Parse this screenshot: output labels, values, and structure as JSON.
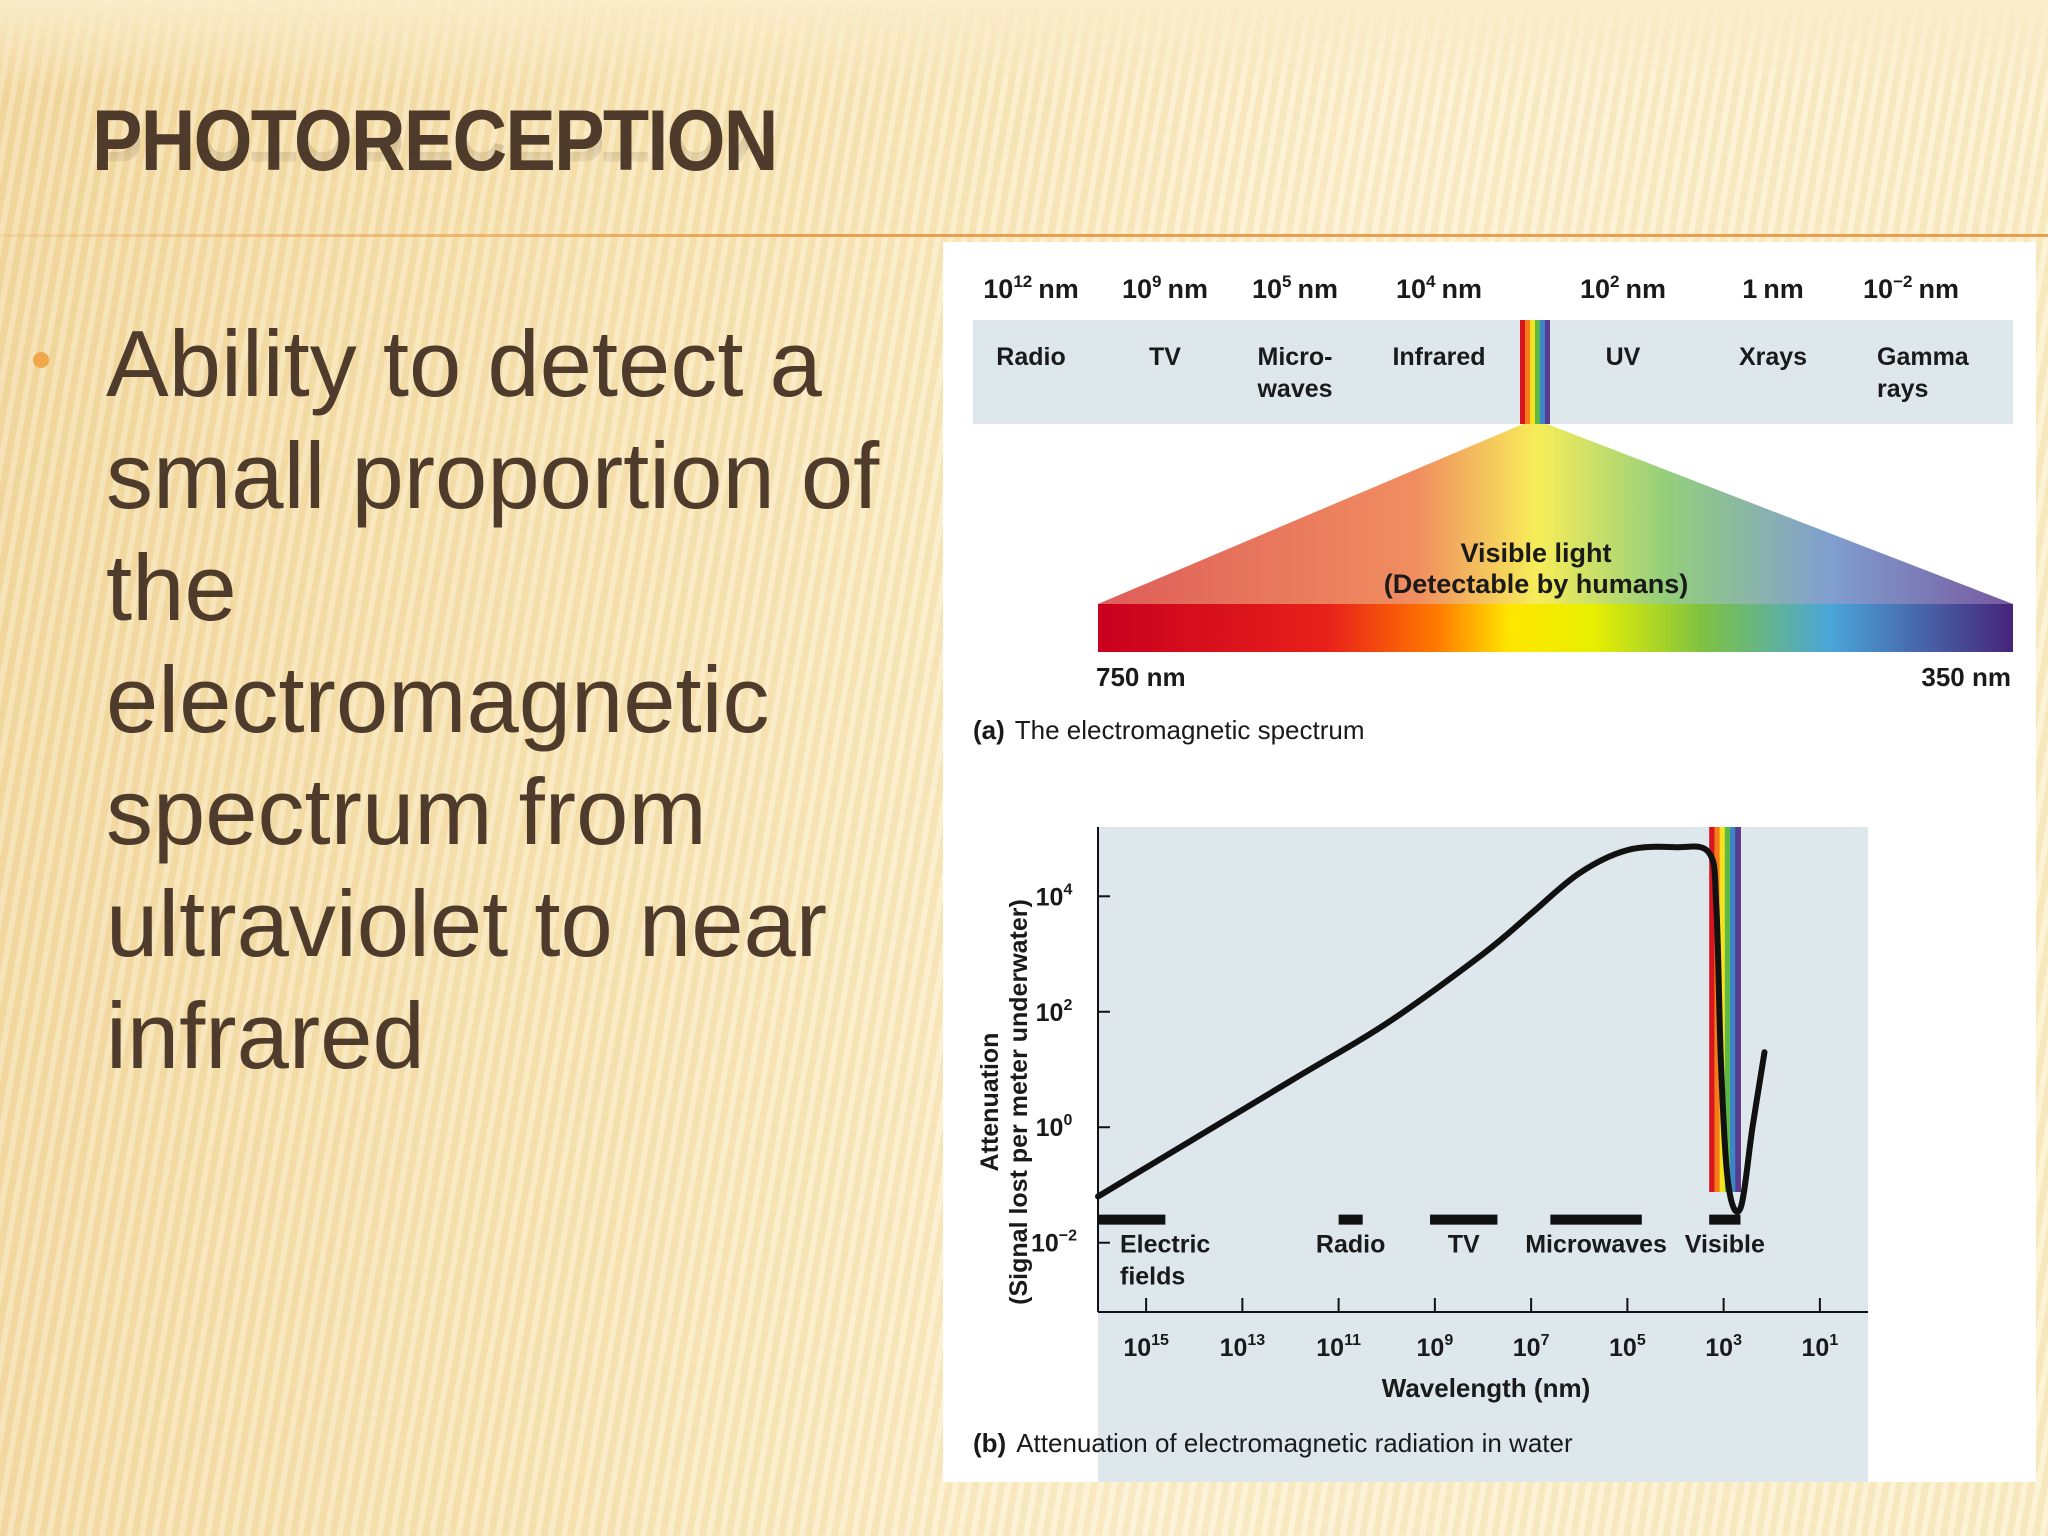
{
  "slide": {
    "title": "PHOTORECEPTION",
    "bullet": "Ability to detect a small proportion of the electromagnetic spectrum from ultraviolet to near infrared"
  },
  "spectrum": {
    "wavelengths": [
      {
        "base": "10",
        "exp": "12",
        "unit": "nm"
      },
      {
        "base": "10",
        "exp": "9",
        "unit": "nm"
      },
      {
        "base": "10",
        "exp": "5",
        "unit": "nm"
      },
      {
        "base": "10",
        "exp": "4",
        "unit": "nm"
      },
      {
        "base": "10",
        "exp": "2",
        "unit": "nm"
      },
      {
        "base": "1",
        "exp": "",
        "unit": "nm"
      },
      {
        "base": "10",
        "exp": "−2",
        "unit": "nm"
      }
    ],
    "bands": [
      {
        "line1": "Radio",
        "line2": ""
      },
      {
        "line1": "TV",
        "line2": ""
      },
      {
        "line1": "Micro-",
        "line2": "waves"
      },
      {
        "line1": "Infrared",
        "line2": ""
      },
      {
        "line1": "UV",
        "line2": ""
      },
      {
        "line1": "Xrays",
        "line2": ""
      },
      {
        "line1": "Gamma",
        "line2": "rays"
      }
    ],
    "visible_line1": "Visible light",
    "visible_line2": "(Detectable by humans)",
    "range_left": "750 nm",
    "range_right": "350 nm",
    "caption_letter": "(a)",
    "caption_text": "The electromagnetic spectrum"
  },
  "colors": {
    "title": "#4e3b2b",
    "accent": "#f0a64a",
    "band_bg": "#dde7ec",
    "plot_bg": "#dde7ec",
    "ink": "#1a1a1a"
  },
  "chart_data": {
    "type": "line",
    "title": "Attenuation of electromagnetic radiation in water",
    "caption_letter": "(b)",
    "xlabel": "Wavelength (nm)",
    "ylabel_line1": "Attenuation",
    "ylabel_line2": "(Signal lost per meter underwater)",
    "x_scale": "log10, decreasing left to right",
    "xlim_exp": [
      16,
      0
    ],
    "ylim_exp": [
      -3.2,
      5.2
    ],
    "x_ticks": [
      {
        "exp": 15,
        "base": "10",
        "sup": "15"
      },
      {
        "exp": 13,
        "base": "10",
        "sup": "13"
      },
      {
        "exp": 11,
        "base": "10",
        "sup": "11"
      },
      {
        "exp": 9,
        "base": "10",
        "sup": "9"
      },
      {
        "exp": 7,
        "base": "10",
        "sup": "7"
      },
      {
        "exp": 5,
        "base": "10",
        "sup": "5"
      },
      {
        "exp": 3,
        "base": "10",
        "sup": "3"
      },
      {
        "exp": 1,
        "base": "10",
        "sup": "1"
      }
    ],
    "y_ticks": [
      {
        "exp": 4,
        "base": "10",
        "sup": "4"
      },
      {
        "exp": 2,
        "base": "10",
        "sup": "2"
      },
      {
        "exp": 0,
        "base": "10",
        "sup": "0"
      },
      {
        "exp": -2,
        "base": "10",
        "sup": "−2"
      }
    ],
    "series": [
      {
        "name": "Attenuation",
        "points": [
          {
            "x": 16,
            "y": -1.2
          },
          {
            "x": 12,
            "y": 0.8
          },
          {
            "x": 10,
            "y": 1.8
          },
          {
            "x": 8,
            "y": 3.0
          },
          {
            "x": 7,
            "y": 3.7
          },
          {
            "x": 6,
            "y": 4.4
          },
          {
            "x": 5,
            "y": 4.8
          },
          {
            "x": 4,
            "y": 4.85
          },
          {
            "x": 3.3,
            "y": 4.75
          },
          {
            "x": 3.15,
            "y": 3.8
          },
          {
            "x": 3.05,
            "y": 1.0
          },
          {
            "x": 2.9,
            "y": -1.0
          },
          {
            "x": 2.65,
            "y": -1.4
          },
          {
            "x": 2.4,
            "y": 0.0
          },
          {
            "x": 2.15,
            "y": 1.3
          }
        ]
      }
    ],
    "bands": [
      {
        "label1": "Electric",
        "label2": "fields",
        "from_exp": 16,
        "to_exp": 14.6
      },
      {
        "label1": "Radio",
        "label2": "",
        "from_exp": 11.0,
        "to_exp": 10.5
      },
      {
        "label1": "TV",
        "label2": "",
        "from_exp": 9.1,
        "to_exp": 7.7
      },
      {
        "label1": "Microwaves",
        "label2": "",
        "from_exp": 6.6,
        "to_exp": 4.7
      },
      {
        "label1": "Visible",
        "label2": "",
        "from_exp": 3.3,
        "to_exp": 2.65
      }
    ],
    "visible_band_exp": [
      3.3,
      2.65
    ]
  }
}
